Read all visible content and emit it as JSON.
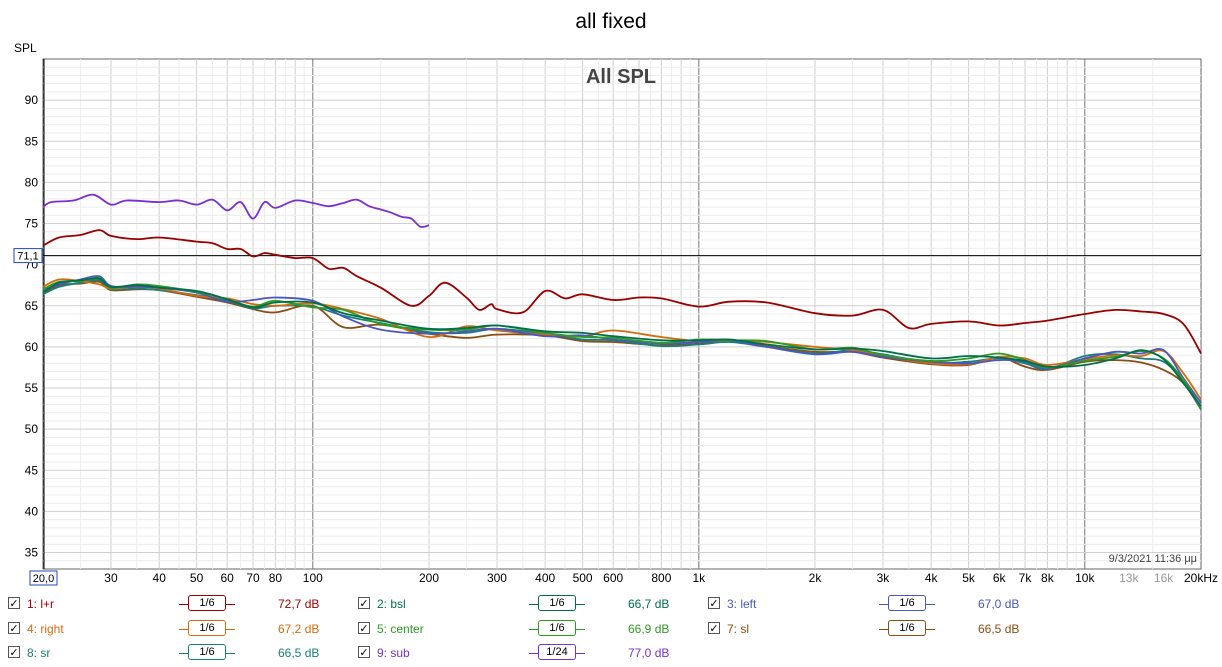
{
  "window_title": "all fixed",
  "chart_data": {
    "type": "line",
    "title": "All SPL",
    "ylabel": "SPL",
    "xlabel": "",
    "x_scale": "log",
    "xlim": [
      20,
      20000
    ],
    "ylim": [
      33,
      95
    ],
    "grid": true,
    "cursor": {
      "y_value": 71.1,
      "label": "71,1",
      "x_label": "20,0"
    },
    "timestamp": "9/3/2021 11:36 μμ",
    "x_ticks": [
      {
        "v": 30,
        "label": "30"
      },
      {
        "v": 40,
        "label": "40"
      },
      {
        "v": 50,
        "label": "50"
      },
      {
        "v": 60,
        "label": "60"
      },
      {
        "v": 70,
        "label": "70"
      },
      {
        "v": 80,
        "label": "80"
      },
      {
        "v": 100,
        "label": "100"
      },
      {
        "v": 200,
        "label": "200"
      },
      {
        "v": 300,
        "label": "300"
      },
      {
        "v": 400,
        "label": "400"
      },
      {
        "v": 500,
        "label": "500"
      },
      {
        "v": 600,
        "label": "600"
      },
      {
        "v": 800,
        "label": "800"
      },
      {
        "v": 1000,
        "label": "1k"
      },
      {
        "v": 2000,
        "label": "2k"
      },
      {
        "v": 3000,
        "label": "3k"
      },
      {
        "v": 4000,
        "label": "4k"
      },
      {
        "v": 5000,
        "label": "5k"
      },
      {
        "v": 6000,
        "label": "6k"
      },
      {
        "v": 7000,
        "label": "7k"
      },
      {
        "v": 8000,
        "label": "8k"
      },
      {
        "v": 10000,
        "label": "10k"
      },
      {
        "v": 13000,
        "label": "13k",
        "muted": true
      },
      {
        "v": 16000,
        "label": "16k",
        "muted": true
      },
      {
        "v": 20000,
        "label": "20kHz"
      }
    ],
    "y_ticks": [
      {
        "v": 90,
        "label": "90"
      },
      {
        "v": 85,
        "label": "85"
      },
      {
        "v": 80,
        "label": "80"
      },
      {
        "v": 75,
        "label": "75"
      },
      {
        "v": 70,
        "label": "70"
      },
      {
        "v": 65,
        "label": "65"
      },
      {
        "v": 60,
        "label": "60"
      },
      {
        "v": 55,
        "label": "55"
      },
      {
        "v": 50,
        "label": "50"
      },
      {
        "v": 45,
        "label": "45"
      },
      {
        "v": 40,
        "label": "40"
      },
      {
        "v": 35,
        "label": "35"
      }
    ],
    "series": [
      {
        "name": "l+r",
        "color": "#990000",
        "x": [
          20,
          22,
          25,
          28,
          30,
          35,
          40,
          50,
          55,
          60,
          65,
          70,
          75,
          80,
          90,
          100,
          110,
          120,
          130,
          150,
          180,
          200,
          220,
          250,
          270,
          290,
          300,
          350,
          400,
          450,
          500,
          600,
          700,
          800,
          1000,
          1200,
          1500,
          2000,
          2500,
          3000,
          3500,
          4000,
          5000,
          6000,
          7000,
          8000,
          10000,
          12000,
          14000,
          16000,
          18000,
          20000
        ],
        "y": [
          72.3,
          73.3,
          73.6,
          74.2,
          73.5,
          73.1,
          73.3,
          72.8,
          72.6,
          71.9,
          71.9,
          71.0,
          71.4,
          71.2,
          70.8,
          70.8,
          69.5,
          69.6,
          68.6,
          67.2,
          65.0,
          66.2,
          67.8,
          66.0,
          64.5,
          65.2,
          64.6,
          64.2,
          66.8,
          65.9,
          66.4,
          65.7,
          66.0,
          65.9,
          64.9,
          65.5,
          65.4,
          64.1,
          63.8,
          64.5,
          62.3,
          62.8,
          63.1,
          62.6,
          62.9,
          63.2,
          64.0,
          64.5,
          64.3,
          64.0,
          62.8,
          59.2
        ]
      },
      {
        "name": "sub",
        "color": "#7a2fcf",
        "x": [
          20,
          21,
          24,
          27,
          30,
          33,
          40,
          45,
          50,
          55,
          60,
          65,
          70,
          75,
          80,
          90,
          100,
          110,
          120,
          130,
          140,
          150,
          160,
          170,
          180,
          190,
          200
        ],
        "y": [
          77.0,
          77.6,
          77.8,
          78.5,
          77.3,
          77.8,
          77.6,
          77.8,
          77.3,
          77.9,
          76.6,
          77.6,
          75.6,
          77.6,
          76.9,
          77.8,
          77.5,
          77.1,
          77.5,
          77.9,
          77.1,
          76.7,
          76.3,
          75.8,
          75.6,
          74.6,
          74.8
        ]
      },
      {
        "name": "bsl",
        "color": "#00704a",
        "x": [
          20,
          22,
          25,
          28,
          30,
          35,
          40,
          50,
          60,
          70,
          80,
          100,
          120,
          150,
          200,
          250,
          300,
          400,
          500,
          600,
          800,
          1000,
          1200,
          1500,
          2000,
          2500,
          3000,
          4000,
          5000,
          6000,
          7000,
          8000,
          10000,
          12000,
          14000,
          16000,
          18000,
          20000
        ],
        "y": [
          66.6,
          67.8,
          68.1,
          68.3,
          67.3,
          67.5,
          67.2,
          66.8,
          65.8,
          64.8,
          65.4,
          65.4,
          64.1,
          63.2,
          62.2,
          62.3,
          62.6,
          61.9,
          61.7,
          61.3,
          60.8,
          60.8,
          60.9,
          60.3,
          59.7,
          59.8,
          59.5,
          58.6,
          58.9,
          58.7,
          58.3,
          57.6,
          57.8,
          58.6,
          59.6,
          58.5,
          55.6,
          52.8
        ]
      },
      {
        "name": "left",
        "color": "#4a57c0",
        "x": [
          20,
          22,
          25,
          28,
          30,
          35,
          40,
          50,
          60,
          70,
          80,
          100,
          120,
          150,
          200,
          250,
          300,
          400,
          500,
          600,
          800,
          1000,
          1200,
          1500,
          2000,
          2500,
          3000,
          4000,
          5000,
          6000,
          7000,
          8000,
          10000,
          12000,
          14000,
          16000,
          18000,
          20000
        ],
        "y": [
          66.9,
          67.6,
          68.2,
          68.6,
          67.4,
          67.3,
          67.2,
          66.6,
          65.5,
          65.7,
          66.0,
          65.6,
          63.7,
          62.1,
          61.6,
          61.9,
          62.2,
          61.3,
          61.4,
          60.9,
          60.4,
          60.6,
          60.8,
          60.0,
          59.1,
          59.4,
          58.8,
          58.2,
          58.0,
          58.4,
          58.2,
          57.4,
          58.6,
          59.4,
          59.2,
          59.6,
          56.2,
          53.2
        ]
      },
      {
        "name": "right",
        "color": "#d46c0f",
        "x": [
          20,
          22,
          25,
          28,
          30,
          35,
          40,
          50,
          60,
          70,
          80,
          100,
          120,
          150,
          200,
          250,
          300,
          400,
          500,
          600,
          800,
          1000,
          1200,
          1500,
          2000,
          2500,
          3000,
          4000,
          5000,
          6000,
          7000,
          8000,
          10000,
          12000,
          14000,
          16000,
          18000,
          20000
        ],
        "y": [
          67.3,
          68.2,
          68.0,
          67.6,
          67.1,
          67.3,
          67.1,
          66.2,
          65.9,
          65.2,
          65.0,
          65.3,
          64.6,
          63.4,
          61.2,
          62.5,
          62.0,
          61.5,
          61.3,
          62.0,
          61.2,
          60.7,
          60.8,
          60.6,
          60.0,
          59.6,
          58.9,
          58.0,
          57.9,
          58.8,
          58.6,
          57.8,
          58.5,
          59.0,
          58.9,
          59.5,
          56.8,
          53.6
        ]
      },
      {
        "name": "center",
        "color": "#2e9b22",
        "x": [
          20,
          22,
          25,
          28,
          30,
          35,
          40,
          50,
          60,
          70,
          80,
          100,
          120,
          150,
          200,
          250,
          300,
          400,
          500,
          600,
          800,
          1000,
          1200,
          1500,
          2000,
          2500,
          3000,
          4000,
          5000,
          6000,
          7000,
          8000,
          10000,
          12000,
          14000,
          16000,
          18000,
          20000
        ],
        "y": [
          67.0,
          67.9,
          68.0,
          68.4,
          67.2,
          67.6,
          67.4,
          66.7,
          65.8,
          64.9,
          65.6,
          64.8,
          64.5,
          62.8,
          62.1,
          62.1,
          62.6,
          61.7,
          61.2,
          61.1,
          60.5,
          60.9,
          60.8,
          60.7,
          59.7,
          59.9,
          59.0,
          58.3,
          58.6,
          59.2,
          58.4,
          57.5,
          58.3,
          58.8,
          59.5,
          58.6,
          56.0,
          52.6
        ]
      },
      {
        "name": "sl",
        "color": "#8a4d12",
        "x": [
          20,
          22,
          25,
          28,
          30,
          35,
          40,
          50,
          60,
          70,
          80,
          100,
          120,
          150,
          200,
          250,
          300,
          400,
          500,
          600,
          800,
          1000,
          1200,
          1500,
          2000,
          2500,
          3000,
          4000,
          5000,
          6000,
          7000,
          8000,
          10000,
          12000,
          14000,
          16000,
          18000,
          20000
        ],
        "y": [
          66.5,
          67.5,
          67.7,
          67.9,
          66.9,
          67.0,
          66.9,
          66.1,
          65.4,
          64.6,
          64.2,
          65.0,
          62.4,
          62.7,
          61.6,
          61.1,
          61.5,
          61.4,
          60.7,
          60.6,
          60.2,
          60.4,
          60.7,
          60.1,
          59.4,
          59.4,
          58.7,
          57.9,
          57.8,
          58.7,
          57.6,
          57.2,
          58.2,
          58.4,
          58.1,
          57.2,
          55.6,
          52.4
        ]
      },
      {
        "name": "sr",
        "color": "#1a7f7a",
        "x": [
          20,
          22,
          25,
          28,
          30,
          35,
          40,
          50,
          60,
          70,
          80,
          100,
          120,
          150,
          200,
          250,
          300,
          400,
          500,
          600,
          800,
          1000,
          1200,
          1500,
          2000,
          2500,
          3000,
          4000,
          5000,
          6000,
          7000,
          8000,
          10000,
          12000,
          14000,
          16000,
          18000,
          20000
        ],
        "y": [
          66.4,
          67.3,
          67.8,
          68.1,
          67.0,
          67.1,
          66.9,
          66.3,
          65.6,
          64.7,
          65.0,
          64.9,
          63.8,
          62.9,
          61.8,
          61.7,
          62.2,
          61.6,
          60.9,
          60.8,
          60.1,
          60.3,
          60.6,
          60.0,
          59.2,
          59.6,
          59.1,
          58.1,
          58.2,
          58.6,
          58.0,
          57.3,
          58.9,
          59.1,
          58.6,
          58.2,
          55.8,
          52.4
        ]
      }
    ]
  },
  "legend": {
    "items": [
      {
        "label": "1: l+r",
        "smoothing": "1/6",
        "level": "72,7 dB",
        "color": "#990000",
        "checked": "✓"
      },
      {
        "label": "2: bsl",
        "smoothing": "1/6",
        "level": "66,7 dB",
        "color": "#00704a",
        "checked": "✓"
      },
      {
        "label": "3: left",
        "smoothing": "1/6",
        "level": "67,0 dB",
        "color": "#4a57c0",
        "checked": "✓"
      },
      {
        "label": "4: right",
        "smoothing": "1/6",
        "level": "67,2 dB",
        "color": "#d46c0f",
        "checked": "✓"
      },
      {
        "label": "5: center",
        "smoothing": "1/6",
        "level": "66,9 dB",
        "color": "#2e9b22",
        "checked": "✓"
      },
      {
        "label": "7: sl",
        "smoothing": "1/6",
        "level": "66,5 dB",
        "color": "#8a4d12",
        "checked": "✓"
      },
      {
        "label": "8: sr",
        "smoothing": "1/6",
        "level": "66,5 dB",
        "color": "#1a7f7a",
        "checked": "✓"
      },
      {
        "label": "9: sub",
        "smoothing": "1/24",
        "level": "77,0 dB",
        "color": "#7a2fcf",
        "checked": "✓"
      }
    ]
  }
}
